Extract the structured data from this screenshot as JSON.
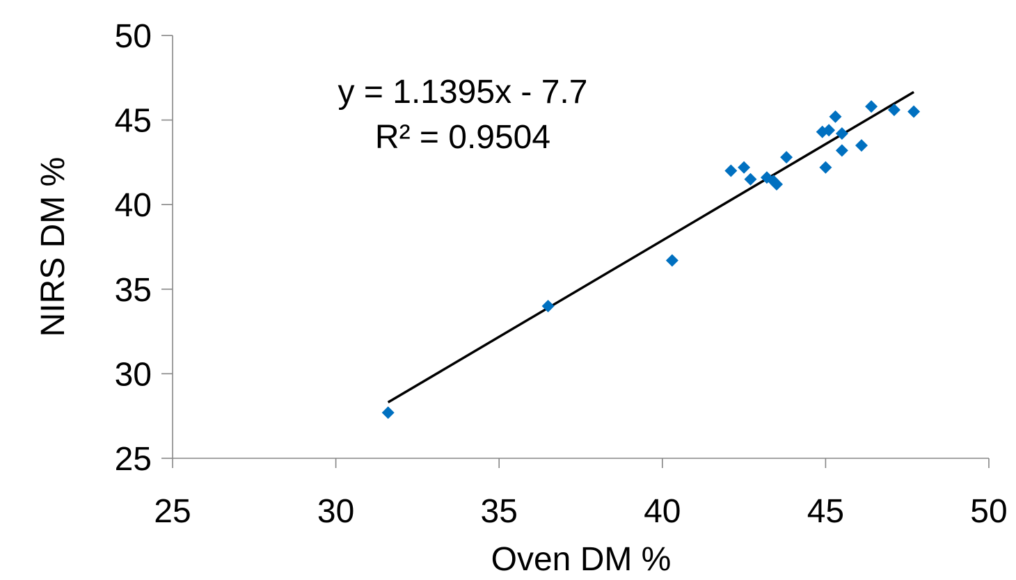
{
  "chart_data": {
    "type": "scatter",
    "title": "",
    "xlabel": "Oven DM %",
    "ylabel": "NIRS DM %",
    "xlim": [
      25,
      50
    ],
    "ylim": [
      25,
      50
    ],
    "x_ticks": [
      "25",
      "30",
      "35",
      "40",
      "45",
      "50"
    ],
    "y_ticks": [
      "25",
      "30",
      "35",
      "40",
      "45",
      "50"
    ],
    "grid": false,
    "legend": "none",
    "marker_color": "#0070C0",
    "trendline_color": "#000000",
    "series": [
      {
        "x": [
          31.6,
          36.5,
          40.3,
          42.1,
          42.5,
          42.7,
          43.2,
          43.4,
          43.5,
          43.8,
          44.9,
          45.0,
          45.1,
          45.3,
          45.5,
          45.5,
          46.1,
          46.4,
          47.1,
          47.7
        ],
        "y": [
          27.7,
          34.0,
          36.7,
          42.0,
          42.2,
          41.5,
          41.6,
          41.4,
          41.2,
          42.8,
          44.3,
          42.2,
          44.4,
          45.2,
          44.2,
          43.2,
          43.5,
          45.8,
          45.6,
          45.5
        ]
      }
    ],
    "trendline": {
      "type": "linear",
      "slope": 1.1395,
      "intercept": -7.7,
      "x_range": [
        31.6,
        47.7
      ]
    },
    "annotations": {
      "equation": "y = 1.1395x - 7.7",
      "r_squared": "R² = 0.9504"
    }
  }
}
